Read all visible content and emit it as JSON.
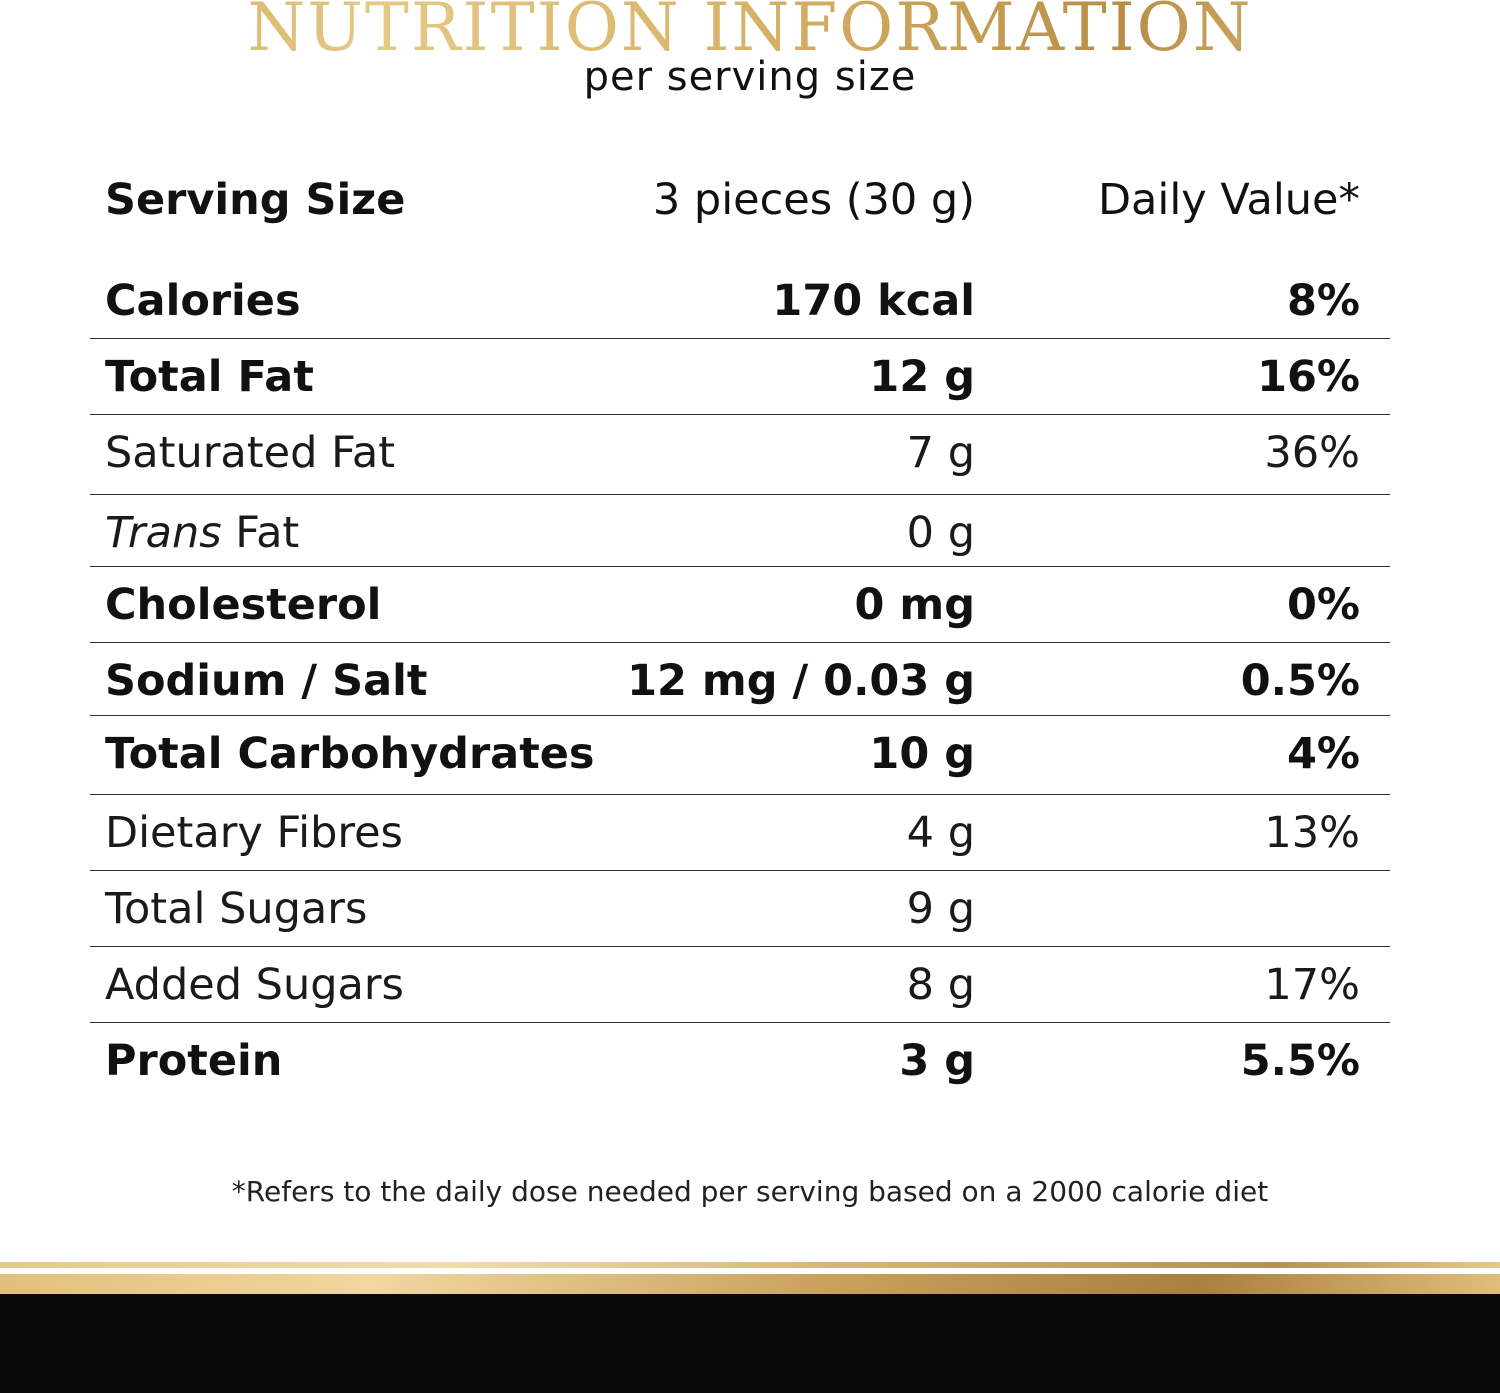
{
  "header": {
    "title": "NUTRITION INFORMATION",
    "subtitle": "per serving size"
  },
  "table": {
    "serving_label": "Serving Size",
    "serving_value": "3 pieces (30 g)",
    "dv_header": "Daily Value*",
    "rows": [
      {
        "name": "Calories",
        "amount": "170 kcal",
        "dv": "8%"
      },
      {
        "name": "Total Fat",
        "amount": "12 g",
        "dv": "16%"
      },
      {
        "name": "Saturated Fat",
        "amount": "7 g",
        "dv": "36%"
      },
      {
        "name_italic": "Trans",
        "name_rest": " Fat",
        "amount": "0 g",
        "dv": ""
      },
      {
        "name": "Cholesterol",
        "amount": "0 mg",
        "dv": "0%"
      },
      {
        "name": "Sodium / Salt",
        "amount": "12 mg / 0.03 g",
        "dv": "0.5%"
      },
      {
        "name": "Total Carbohydrates",
        "amount": "10 g",
        "dv": "4%"
      },
      {
        "name": "Dietary Fibres",
        "amount": "4 g",
        "dv": "13%"
      },
      {
        "name": "Total Sugars",
        "amount": "9 g",
        "dv": ""
      },
      {
        "name": "Added Sugars",
        "amount": "8 g",
        "dv": "17%"
      },
      {
        "name": "Protein",
        "amount": "3 g",
        "dv": "5.5%"
      }
    ]
  },
  "footnote": "*Refers to the daily dose needed per serving based on a 2000 calorie diet",
  "colors": {
    "gold": "#d7b266",
    "dark_band": "#0a0a0a"
  }
}
